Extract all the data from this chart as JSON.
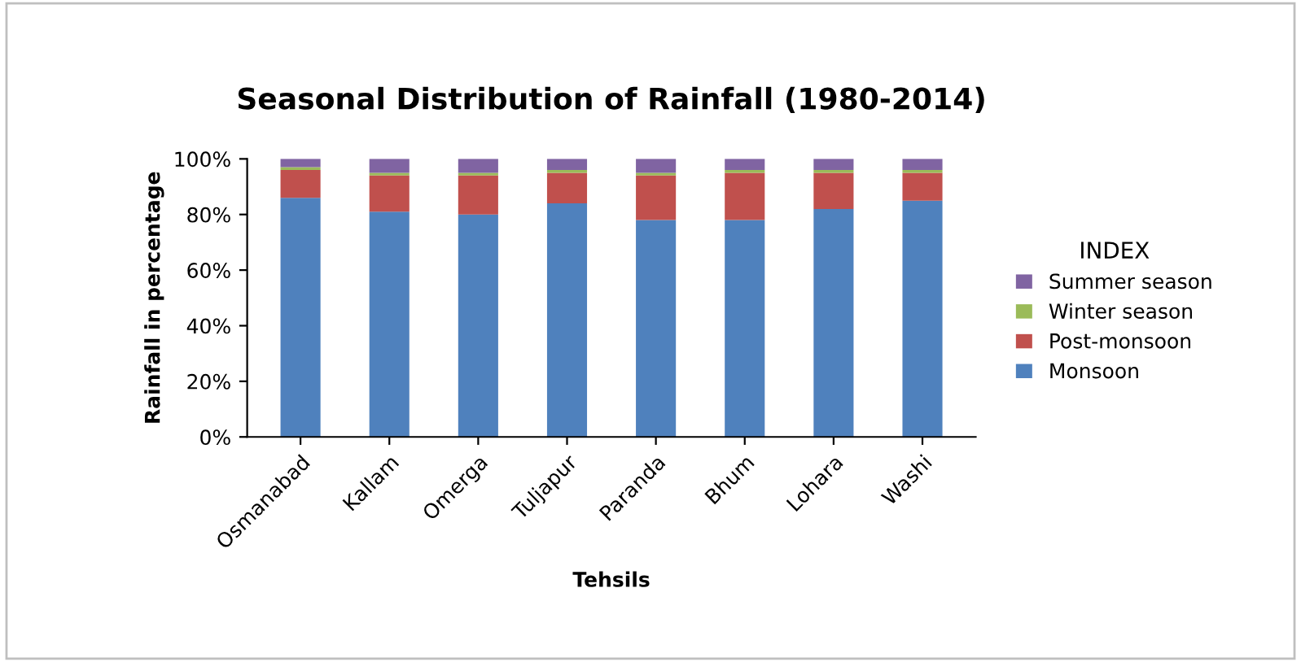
{
  "chart_data": {
    "type": "bar",
    "stacked": true,
    "title": "Seasonal Distribution of Rainfall (1980-2014)",
    "xlabel": "Tehsils",
    "ylabel": "Rainfall in percentage",
    "legend_title": "INDEX",
    "legend": "right",
    "categories": [
      "Osmanabad",
      "Kallam",
      "Omerga",
      "Tuljapur",
      "Paranda",
      "Bhum",
      "Lohara",
      "Washi"
    ],
    "series": [
      {
        "name": "Monsoon",
        "color": "#4f81bd",
        "values": [
          86,
          81,
          80,
          84,
          78,
          78,
          82,
          85
        ]
      },
      {
        "name": "Post-monsoon",
        "color": "#c0504d",
        "values": [
          10,
          13,
          14,
          11,
          16,
          17,
          13,
          10
        ]
      },
      {
        "name": "Winter season",
        "color": "#9bbb59",
        "values": [
          1,
          1,
          1,
          1,
          1,
          1,
          1,
          1
        ]
      },
      {
        "name": "Summer season",
        "color": "#8064a2",
        "values": [
          3,
          5,
          5,
          4,
          5,
          4,
          4,
          4
        ]
      }
    ],
    "ylim": [
      0,
      100
    ],
    "yticks": [
      {
        "value": 0,
        "label": "0%"
      },
      {
        "value": 20,
        "label": "20%"
      },
      {
        "value": 40,
        "label": "40%"
      },
      {
        "value": 60,
        "label": "60%"
      },
      {
        "value": 80,
        "label": "80%"
      },
      {
        "value": 100,
        "label": "100%"
      }
    ],
    "grid": false
  }
}
